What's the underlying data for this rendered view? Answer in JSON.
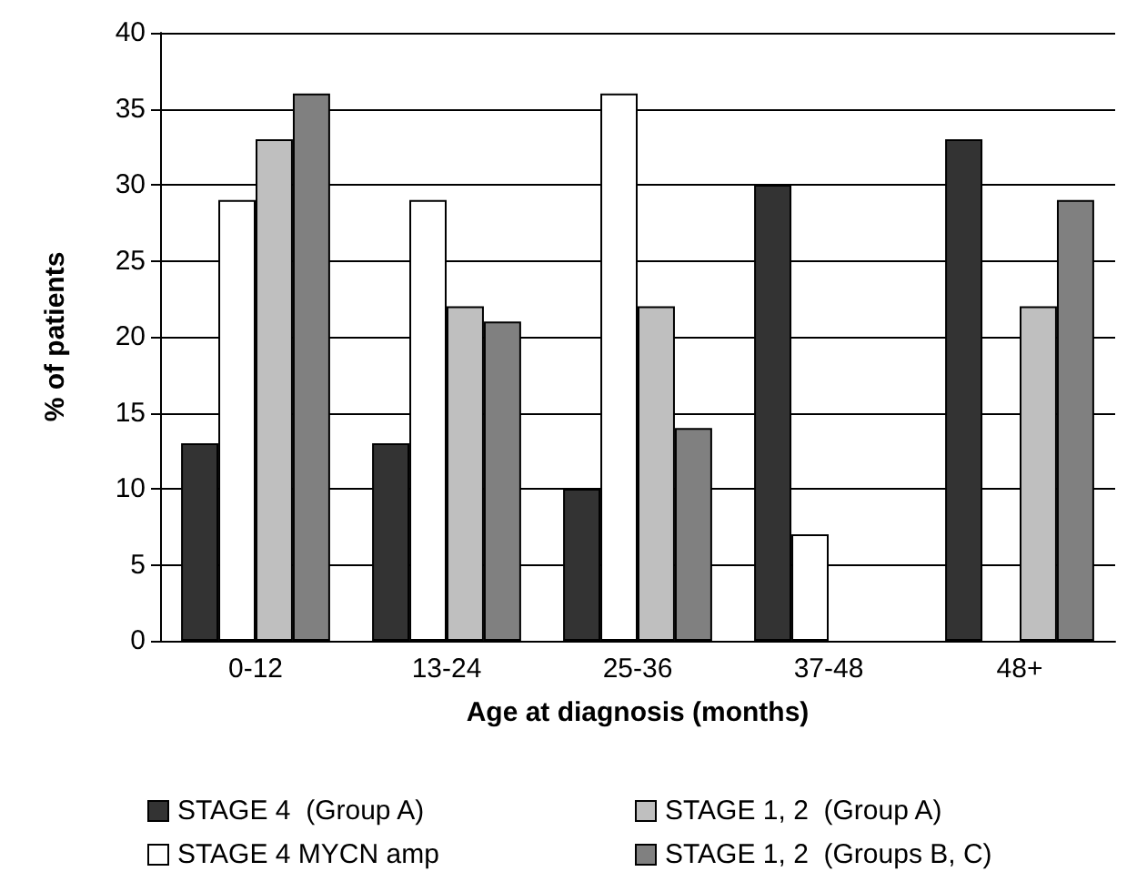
{
  "chart_data": {
    "type": "bar",
    "xlabel": "Age at diagnosis (months)",
    "ylabel": "% of patients",
    "categories": [
      "0-12",
      "13-24",
      "25-36",
      "37-48",
      "48+"
    ],
    "series": [
      {
        "name": "STAGE 4  (Group A)",
        "color": "#333333",
        "values": [
          13,
          13,
          10,
          30,
          33
        ]
      },
      {
        "name": "STAGE 4 MYCN amp",
        "color": "#ffffff",
        "values": [
          29,
          29,
          36,
          7,
          0
        ]
      },
      {
        "name": "STAGE 1, 2  (Group A)",
        "color": "#bfbfbf",
        "values": [
          33,
          22,
          22,
          0,
          22
        ]
      },
      {
        "name": "STAGE 1, 2  (Groups B, C)",
        "color": "#808080",
        "values": [
          36,
          21,
          14,
          0,
          29
        ]
      }
    ],
    "ylim": [
      0,
      40
    ],
    "yticks": [
      0,
      5,
      10,
      15,
      20,
      25,
      30,
      35,
      40
    ],
    "grid": "y",
    "legend": "bottom"
  }
}
